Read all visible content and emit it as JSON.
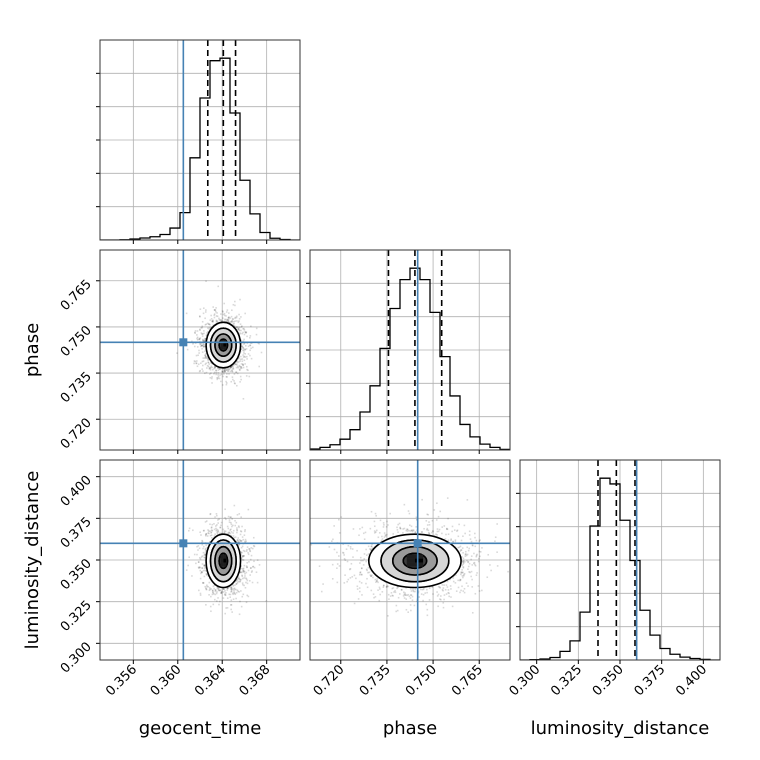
{
  "chart_data": {
    "type": "corner",
    "title": "",
    "parameters": [
      {
        "name": "geocent_time",
        "label": "geocent_time",
        "range": [
          0.353,
          0.371
        ],
        "ticks": [
          0.356,
          0.36,
          0.364,
          0.368
        ],
        "tick_labels": [
          "0.356",
          "0.360",
          "0.364",
          "0.368"
        ],
        "truth": 0.3605,
        "quantiles": [
          0.3627,
          0.3641,
          0.3652
        ],
        "histogram": {
          "bin_edges": [
            0.353,
            0.3539,
            0.3548,
            0.3557,
            0.3566,
            0.3575,
            0.3584,
            0.3593,
            0.3602,
            0.3611,
            0.362,
            0.3629,
            0.3638,
            0.3647,
            0.3656,
            0.3665,
            0.3674,
            0.3683,
            0.3692,
            0.3701,
            0.371
          ],
          "counts": [
            0,
            0,
            1,
            4,
            8,
            13,
            22,
            48,
            110,
            330,
            570,
            720,
            730,
            510,
            240,
            105,
            30,
            7,
            2,
            0
          ]
        }
      },
      {
        "name": "phase",
        "label": "phase",
        "range": [
          0.71,
          0.775
        ],
        "ticks": [
          0.72,
          0.735,
          0.75,
          0.765
        ],
        "tick_labels": [
          "0.720",
          "0.735",
          "0.750",
          "0.765"
        ],
        "truth": 0.745,
        "quantiles": [
          0.7355,
          0.7441,
          0.7528
        ],
        "histogram": {
          "bin_edges": [
            0.71,
            0.71325,
            0.7165,
            0.71975,
            0.723,
            0.72625,
            0.7295,
            0.73275,
            0.736,
            0.73925,
            0.7425,
            0.74575,
            0.749,
            0.75225,
            0.7555,
            0.75875,
            0.762,
            0.76525,
            0.7685,
            0.77175,
            0.775
          ],
          "counts": [
            3,
            8,
            16,
            33,
            62,
            116,
            196,
            310,
            432,
            520,
            555,
            520,
            420,
            285,
            165,
            78,
            40,
            18,
            8,
            2
          ]
        }
      },
      {
        "name": "luminosity_distance",
        "label": "luminosity_distance",
        "range": [
          0.29,
          0.41
        ],
        "ticks": [
          0.3,
          0.325,
          0.35,
          0.375,
          0.4
        ],
        "tick_labels": [
          "0.300",
          "0.325",
          "0.350",
          "0.375",
          "0.400"
        ],
        "truth": 0.36,
        "quantiles": [
          0.3368,
          0.3478,
          0.359
        ],
        "histogram": {
          "bin_edges": [
            0.29,
            0.296,
            0.302,
            0.308,
            0.314,
            0.32,
            0.326,
            0.332,
            0.338,
            0.344,
            0.35,
            0.356,
            0.362,
            0.368,
            0.374,
            0.38,
            0.386,
            0.392,
            0.398,
            0.404,
            0.41
          ],
          "counts": [
            0,
            2,
            5,
            13,
            45,
            100,
            250,
            700,
            950,
            920,
            730,
            520,
            260,
            130,
            60,
            30,
            15,
            8,
            3,
            0
          ]
        }
      }
    ],
    "pairs": [
      {
        "x": "geocent_time",
        "y": "phase",
        "center": [
          0.3641,
          0.7441
        ],
        "contour_levels": [
          {
            "sx": 0.00155,
            "sy": 0.0074
          },
          {
            "sx": 0.00115,
            "sy": 0.0055
          },
          {
            "sx": 0.00075,
            "sy": 0.0036
          },
          {
            "sx": 0.00038,
            "sy": 0.0019
          }
        ]
      },
      {
        "x": "geocent_time",
        "y": "luminosity_distance",
        "center": [
          0.3641,
          0.3495
        ],
        "contour_levels": [
          {
            "sx": 0.00155,
            "sy": 0.016
          },
          {
            "sx": 0.00115,
            "sy": 0.0125
          },
          {
            "sx": 0.00075,
            "sy": 0.0085
          },
          {
            "sx": 0.00038,
            "sy": 0.0045
          }
        ]
      },
      {
        "x": "phase",
        "y": "luminosity_distance",
        "center": [
          0.7441,
          0.3495
        ],
        "contour_levels": [
          {
            "sx": 0.015,
            "sy": 0.016
          },
          {
            "sx": 0.011,
            "sy": 0.0125
          },
          {
            "sx": 0.0072,
            "sy": 0.0085
          },
          {
            "sx": 0.0038,
            "sy": 0.0045
          }
        ]
      }
    ],
    "colors": {
      "truth": "#4682b4",
      "histogram": "#000000",
      "quantile_lines": "#000000",
      "contour_fill_levels": [
        "#ffffff",
        "#d6d6d6",
        "#9a9a9a",
        "#3c3c3c"
      ],
      "grid": "#b0b0b0"
    },
    "grid": true,
    "quantile_line_style": "dashed"
  }
}
